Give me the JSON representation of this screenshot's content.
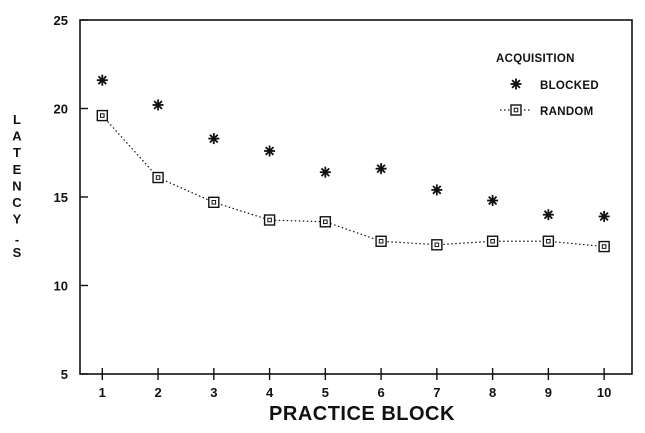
{
  "chart_data": {
    "type": "line",
    "xlabel": "PRACTICE BLOCK",
    "ylabel": "LATENCY - S",
    "x": [
      1,
      2,
      3,
      4,
      5,
      6,
      7,
      8,
      9,
      10
    ],
    "xlim": [
      0.6,
      10.5
    ],
    "ylim": [
      5,
      25
    ],
    "xticks": [
      "1",
      "2",
      "3",
      "4",
      "5",
      "6",
      "7",
      "8",
      "9",
      "10"
    ],
    "yticks": [
      "5",
      "10",
      "15",
      "20",
      "25"
    ],
    "grid": false,
    "legend": {
      "title": "ACQUISITION",
      "position": "top-right"
    },
    "series": [
      {
        "name": "BLOCKED",
        "marker": "asterisk",
        "line": "none",
        "values": [
          21.6,
          20.2,
          18.3,
          17.6,
          16.4,
          16.6,
          15.4,
          14.8,
          14.0,
          13.9
        ]
      },
      {
        "name": "RANDOM",
        "marker": "square",
        "line": "dotted",
        "values": [
          19.6,
          16.1,
          14.7,
          13.7,
          13.6,
          12.5,
          12.3,
          12.5,
          12.5,
          12.2
        ]
      }
    ]
  }
}
